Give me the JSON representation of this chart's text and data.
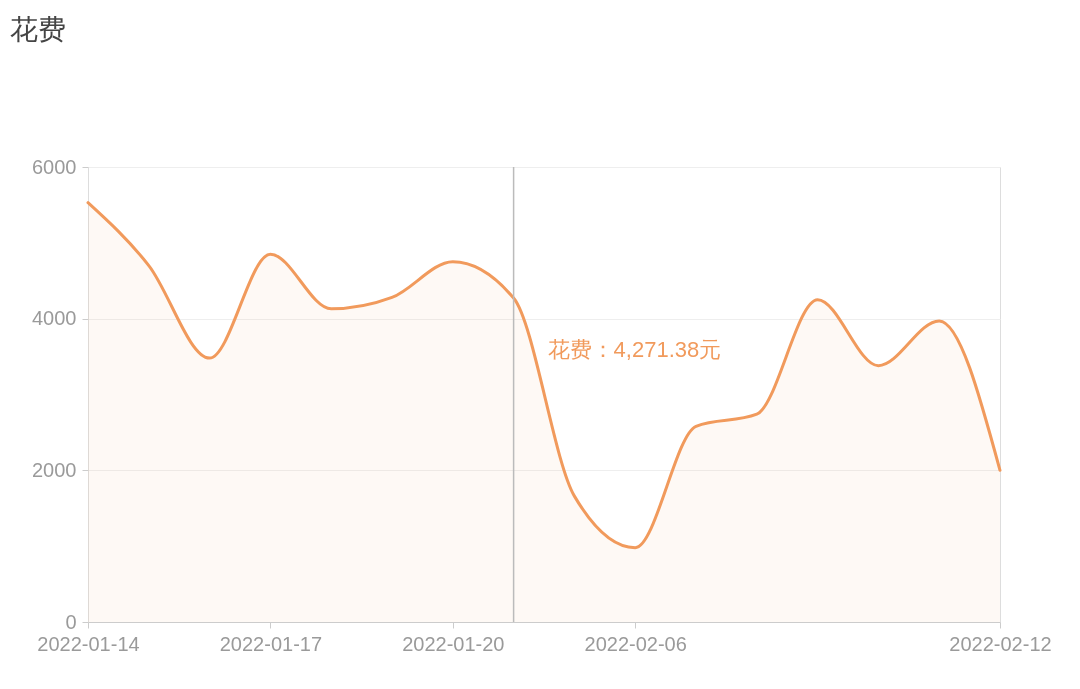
{
  "chart_data": {
    "type": "area",
    "title": "花费",
    "categories": [
      "2022-01-14",
      null,
      null,
      "2022-01-17",
      null,
      null,
      "2022-01-20",
      null,
      null,
      "2022-02-06",
      null,
      null,
      null,
      null,
      null,
      "2022-02-12"
    ],
    "series": [
      {
        "color": "#f19a5c",
        "values": [
          5530,
          4700,
          3480,
          4850,
          4130,
          4280,
          4750,
          4271.38,
          1660,
          980,
          2580,
          2740,
          4250,
          3380,
          3970,
          2000
        ],
        "value_labels": [
          null,
          null,
          null,
          null,
          null,
          null,
          null,
          "花费：4,271.38元",
          null,
          null,
          null,
          null,
          null,
          null,
          null,
          null
        ]
      }
    ],
    "ylim": [
      0,
      6000
    ],
    "yticks": [
      0,
      2000,
      4000,
      6000
    ],
    "grid": "y"
  }
}
